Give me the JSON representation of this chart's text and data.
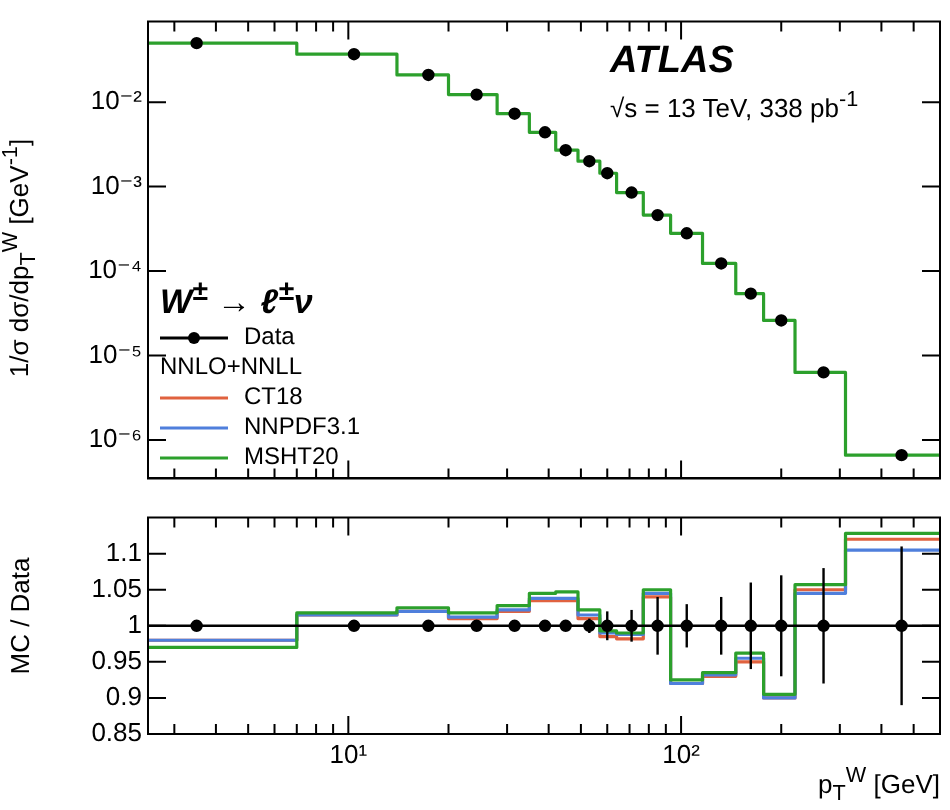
{
  "chart_data": [
    {
      "type": "step",
      "ylabel": "1/σ dσ/dp$_{T}$$^{W}$ [GeV$^{-1}$]",
      "legend_title": "W$^{±}$ → ℓ$^{±}$ν",
      "annotations": [
        "ATLAS",
        "√s = 13 TeV, 338 pb$^{-1}$",
        "NNLO+NNLL"
      ],
      "legend": "bottom left",
      "log": "xy",
      "grid": false,
      "tick_labels": "y",
      "marker": "circle",
      "bins": [
        2.5,
        7,
        14,
        20,
        28,
        35,
        42,
        49,
        57,
        64,
        77,
        93,
        116,
        146,
        177,
        220,
        312,
        600
      ],
      "x": [
        3.5,
        10.4,
        17.4,
        24.3,
        31.6,
        39,
        45,
        53,
        60,
        71,
        85,
        104,
        132,
        162,
        200,
        268,
        460
      ],
      "xlim": [
        2.5,
        600
      ],
      "xticks": [
        {
          "value": 3,
          "label": null
        },
        {
          "value": 4,
          "label": null
        },
        {
          "value": 5,
          "label": null
        },
        {
          "value": 6,
          "label": null
        },
        {
          "value": 7,
          "label": null
        },
        {
          "value": 8,
          "label": null
        },
        {
          "value": 9,
          "label": null
        },
        {
          "value": 10,
          "label": null
        },
        {
          "value": 20,
          "label": null
        },
        {
          "value": 30,
          "label": null
        },
        {
          "value": 40,
          "label": null
        },
        {
          "value": 50,
          "label": null
        },
        {
          "value": 60,
          "label": null
        },
        {
          "value": 70,
          "label": null
        },
        {
          "value": 80,
          "label": null
        },
        {
          "value": 90,
          "label": null
        },
        {
          "value": 100,
          "label": null
        },
        {
          "value": 200,
          "label": null
        },
        {
          "value": 300,
          "label": null
        },
        {
          "value": 400,
          "label": null
        },
        {
          "value": 500,
          "label": null
        }
      ],
      "ylim": [
        3.5e-07,
        0.09
      ],
      "yticks": [
        {
          "value": 1e-06,
          "label": "10⁻⁶"
        },
        {
          "value": 1e-05,
          "label": "10⁻⁵"
        },
        {
          "value": 0.0001,
          "label": "10⁻⁴"
        },
        {
          "value": 0.001,
          "label": "10⁻³"
        },
        {
          "value": 0.01,
          "label": "10⁻²"
        }
      ],
      "series": [
        {
          "name": "Data",
          "type": "scatter",
          "color": "#000000",
          "values": [
            0.05,
            0.037,
            0.021,
            0.0123,
            0.0073,
            0.0044,
            0.0027,
            0.002,
            0.00144,
            0.00085,
            0.00046,
            0.00028,
            0.000123,
            5.4e-05,
            2.6e-05,
            6.3e-06,
            6.6e-07
          ]
        },
        {
          "type": "histogram",
          "color": "#2ca02c",
          "values": [
            0.05,
            0.037,
            0.021,
            0.0123,
            0.0073,
            0.0044,
            0.0027,
            0.002,
            0.00144,
            0.00085,
            0.00046,
            0.00028,
            0.000123,
            5.4e-05,
            2.6e-05,
            6.3e-06,
            6.6e-07
          ]
        }
      ]
    },
    {
      "type": "step",
      "xlabel": "p$_{T}$$^{W}$ [GeV]",
      "ylabel": "MC / Data",
      "log": "x",
      "grid": false,
      "marker": "circle",
      "bins": [
        2.5,
        7,
        14,
        20,
        28,
        35,
        42,
        49,
        57,
        64,
        77,
        93,
        116,
        146,
        177,
        220,
        312,
        600
      ],
      "x": [
        3.5,
        10.4,
        17.4,
        24.3,
        31.6,
        39,
        45,
        53,
        60,
        71,
        85,
        104,
        132,
        162,
        200,
        268,
        460
      ],
      "xlim": [
        2.5,
        600
      ],
      "xticks": [
        {
          "value": 3,
          "label": null
        },
        {
          "value": 4,
          "label": null
        },
        {
          "value": 5,
          "label": null
        },
        {
          "value": 6,
          "label": null
        },
        {
          "value": 7,
          "label": null
        },
        {
          "value": 8,
          "label": null
        },
        {
          "value": 9,
          "label": null
        },
        {
          "value": 10,
          "label": "10¹"
        },
        {
          "value": 20,
          "label": null
        },
        {
          "value": 30,
          "label": null
        },
        {
          "value": 40,
          "label": null
        },
        {
          "value": 50,
          "label": null
        },
        {
          "value": 60,
          "label": null
        },
        {
          "value": 70,
          "label": null
        },
        {
          "value": 80,
          "label": null
        },
        {
          "value": 90,
          "label": null
        },
        {
          "value": 100,
          "label": "10²"
        },
        {
          "value": 200,
          "label": null
        },
        {
          "value": 300,
          "label": null
        },
        {
          "value": 400,
          "label": null
        },
        {
          "value": 500,
          "label": null
        }
      ],
      "ylim": [
        0.85,
        1.15
      ],
      "yticks": [
        0.85,
        0.9,
        0.95,
        1,
        1.05,
        1.1
      ],
      "ref_lines": [
        {
          "axis": "y",
          "value": 1,
          "color": "#000000"
        }
      ],
      "series": [
        {
          "name": "CT18",
          "type": "histogram",
          "color": "#e0623f",
          "values": [
            0.98,
            1.015,
            1.02,
            1.01,
            1.02,
            1.035,
            1.035,
            1.01,
            0.985,
            0.982,
            1.04,
            0.92,
            0.93,
            0.95,
            0.9,
            1.05,
            1.12
          ]
        },
        {
          "name": "NNPDF3.1",
          "type": "histogram",
          "color": "#4f7fdc",
          "values": [
            0.98,
            1.015,
            1.02,
            1.012,
            1.022,
            1.038,
            1.038,
            1.015,
            0.99,
            0.988,
            1.045,
            0.92,
            0.932,
            0.955,
            0.9,
            1.045,
            1.105
          ]
        },
        {
          "name": "MSHT20",
          "type": "histogram",
          "color": "#2ca02c",
          "values": [
            0.97,
            1.018,
            1.025,
            1.018,
            1.028,
            1.045,
            1.047,
            1.022,
            0.993,
            0.99,
            1.05,
            0.925,
            0.935,
            0.962,
            0.905,
            1.057,
            1.128
          ]
        },
        {
          "type": "scatter",
          "color": "#000000",
          "values": [
            1,
            1,
            1,
            1,
            1,
            1,
            1,
            1,
            1,
            1,
            1,
            1,
            1,
            1,
            1,
            1,
            1
          ],
          "errors": [
            0.006,
            0.006,
            0.005,
            0.005,
            0.005,
            0.006,
            0.007,
            0.01,
            0.02,
            0.022,
            0.04,
            0.03,
            0.04,
            0.06,
            0.07,
            0.08,
            0.11
          ]
        }
      ]
    }
  ]
}
